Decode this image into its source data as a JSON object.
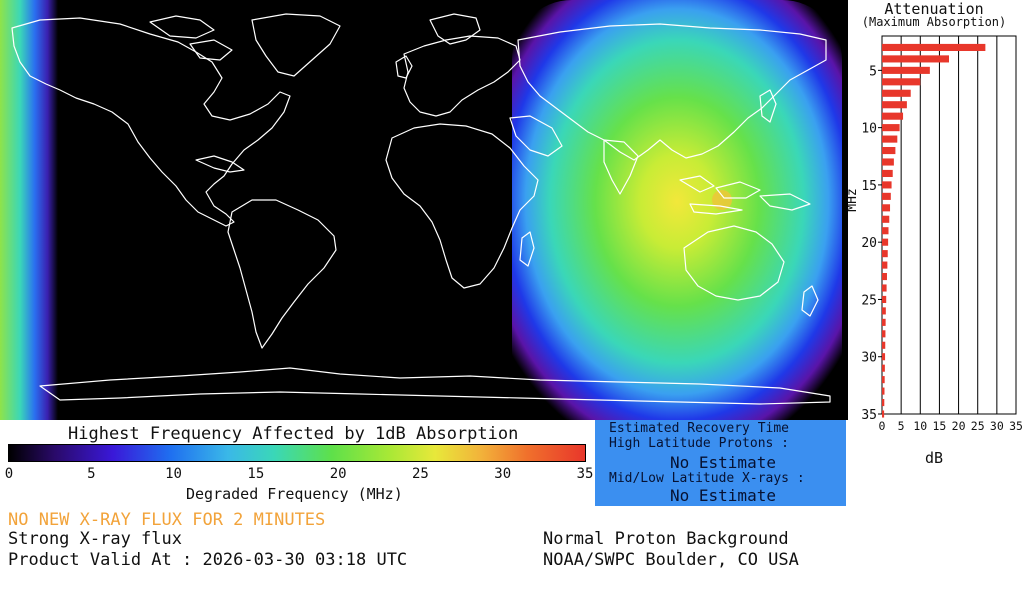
{
  "map": {
    "hotspot_icon": "absorption-hotspot-icon",
    "colors": {
      "ocean": "#000000",
      "coastline": "#ffffff"
    }
  },
  "attenuation": {
    "title": "Attenuation",
    "subtitle": "(Maximum Absorption)",
    "y_label": "MHz",
    "x_label": "dB",
    "y_ticks": [
      "5",
      "10",
      "15",
      "20",
      "25",
      "30",
      "35"
    ],
    "x_ticks": [
      "0",
      "5",
      "10",
      "15",
      "20",
      "25",
      "30",
      "35"
    ],
    "bar_color": "#e8372b"
  },
  "chart_data": {
    "type": "bar",
    "orientation": "horizontal",
    "title": "Attenuation",
    "subtitle": "(Maximum Absorption)",
    "xlabel": "dB",
    "ylabel": "MHz",
    "xlim": [
      0,
      35
    ],
    "ylim": [
      2,
      35
    ],
    "y": [
      3,
      4,
      5,
      6,
      7,
      8,
      9,
      10,
      11,
      12,
      13,
      14,
      15,
      16,
      17,
      18,
      19,
      20,
      21,
      22,
      23,
      24,
      25,
      26,
      27,
      28,
      29,
      30,
      31,
      32,
      33,
      34,
      35
    ],
    "values": [
      27,
      17.5,
      12.5,
      10,
      7.5,
      6.5,
      5.5,
      4.6,
      4.0,
      3.5,
      3.1,
      2.8,
      2.5,
      2.3,
      2.1,
      1.9,
      1.7,
      1.6,
      1.5,
      1.4,
      1.3,
      1.2,
      1.1,
      1.0,
      0.95,
      0.9,
      0.85,
      0.8,
      0.75,
      0.7,
      0.65,
      0.6,
      0.55
    ]
  },
  "colorbar": {
    "title": "Highest Frequency Affected by 1dB Absorption",
    "xlabel": "Degraded Frequency (MHz)",
    "ticks": [
      "0",
      "5",
      "10",
      "15",
      "20",
      "25",
      "30",
      "35"
    ]
  },
  "recovery": {
    "title": "Estimated Recovery Time",
    "high_label": "High Latitude Protons :",
    "high_value": "No Estimate",
    "mid_label": "Mid/Low Latitude X-rays :",
    "mid_value": "No Estimate",
    "box_color": "#3b8ff0"
  },
  "footer": {
    "alert": "NO NEW X-RAY FLUX FOR 2 MINUTES",
    "status": "Strong X-ray flux",
    "valid": "Product Valid At : 2026-03-30 03:18 UTC",
    "proton": "Normal Proton Background",
    "agency": "NOAA/SWPC Boulder, CO USA"
  }
}
